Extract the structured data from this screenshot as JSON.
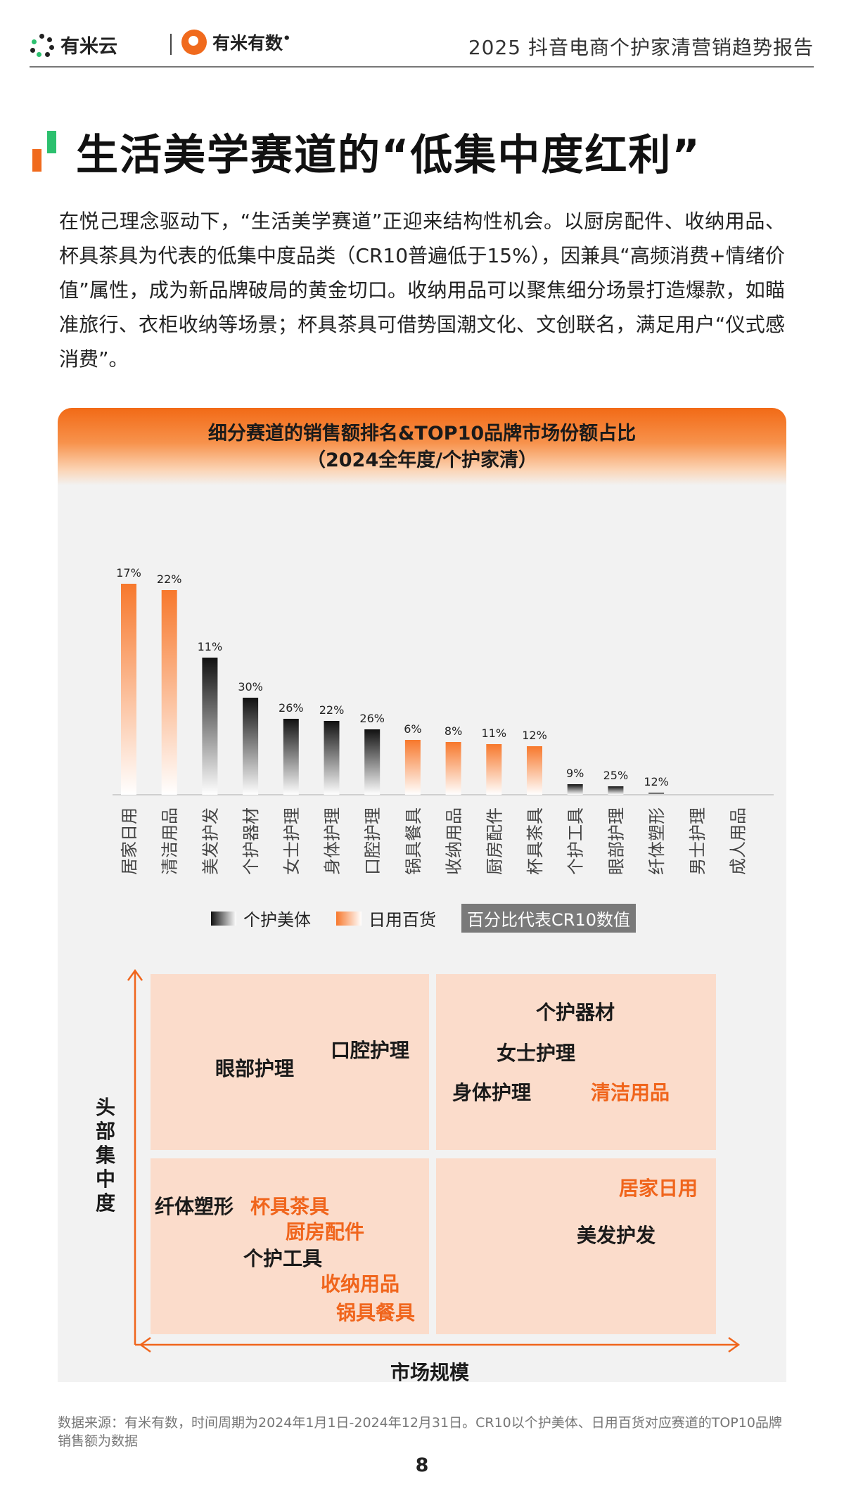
{
  "header": {
    "logo1_text": "有米云",
    "logo2_text": "有米有数",
    "report_title": "2025 抖音电商个护家清营销趋势报告"
  },
  "page_title": "生活美学赛道的“低集中度红利”",
  "body_text": "在悦己理念驱动下，“生活美学赛道”正迎来结构性机会。以厨房配件、收纳用品、杯具茶具为代表的低集中度品类（CR10普遍低于15%），因兼具“高频消费+情绪价值”属性，成为新品牌破局的黄金切口。收纳用品可以聚焦细分场景打造爆款，如瞄准旅行、衣柜收纳等场景；杯具茶具可借势国潮文化、文创联名，满足用户“仪式感消费”。",
  "panel": {
    "title_line1": "细分赛道的销售额排名&TOP10品牌市场份额占比",
    "title_line2": "（2024全年度/个护家清）"
  },
  "chart_data": {
    "type": "bar",
    "categories": [
      "居家日用",
      "清洁用品",
      "美发护发",
      "个护器材",
      "女士护理",
      "身体护理",
      "口腔护理",
      "锅具餐具",
      "收纳用品",
      "厨房配件",
      "杯具茶具",
      "个护工具",
      "眼部护理",
      "纤体塑形",
      "男士护理",
      "成人用品"
    ],
    "values": [
      100,
      97,
      65,
      46,
      36,
      35,
      31,
      26,
      25,
      24,
      23,
      5,
      4,
      1,
      0,
      0
    ],
    "groups": [
      "日用百货",
      "日用百货",
      "个护美体",
      "个护美体",
      "个护美体",
      "个护美体",
      "个护美体",
      "日用百货",
      "日用百货",
      "日用百货",
      "日用百货",
      "个护美体",
      "个护美体",
      "个护美体",
      "个护美体",
      "个护美体"
    ],
    "labels": [
      "17%",
      "22%",
      "11%",
      "30%",
      "26%",
      "22%",
      "26%",
      "6%",
      "8%",
      "11%",
      "12%",
      "9%",
      "25%",
      "12%",
      "",
      ""
    ],
    "legend": [
      "个护美体",
      "日用百货"
    ],
    "legend_note": "百分比代表CR10数值",
    "colors": {
      "个护美体": "#111111",
      "日用百货": "#f7823a"
    },
    "value_axis": "销售额排名（无刻度）"
  },
  "matrix": {
    "y_label": "头部集中度",
    "x_label": "市场规模",
    "items": [
      {
        "text": "眼部护理",
        "color": "black"
      },
      {
        "text": "口腔护理",
        "color": "black"
      },
      {
        "text": "个护器材",
        "color": "black"
      },
      {
        "text": "女士护理",
        "color": "black"
      },
      {
        "text": "身体护理",
        "color": "black"
      },
      {
        "text": "清洁用品",
        "color": "orange"
      },
      {
        "text": "纤体塑形",
        "color": "black"
      },
      {
        "text": "杯具茶具",
        "color": "orange"
      },
      {
        "text": "厨房配件",
        "color": "orange"
      },
      {
        "text": "个护工具",
        "color": "black"
      },
      {
        "text": "收纳用品",
        "color": "orange"
      },
      {
        "text": "锅具餐具",
        "color": "orange"
      },
      {
        "text": "居家日用",
        "color": "orange"
      },
      {
        "text": "美发护发",
        "color": "black"
      }
    ]
  },
  "source": "数据来源：有米有数，时间周期为2024年1月1日-2024年12月31日。CR10以个护美体、日用百货对应赛道的TOP10品牌销售额为数据",
  "page_number": "8"
}
